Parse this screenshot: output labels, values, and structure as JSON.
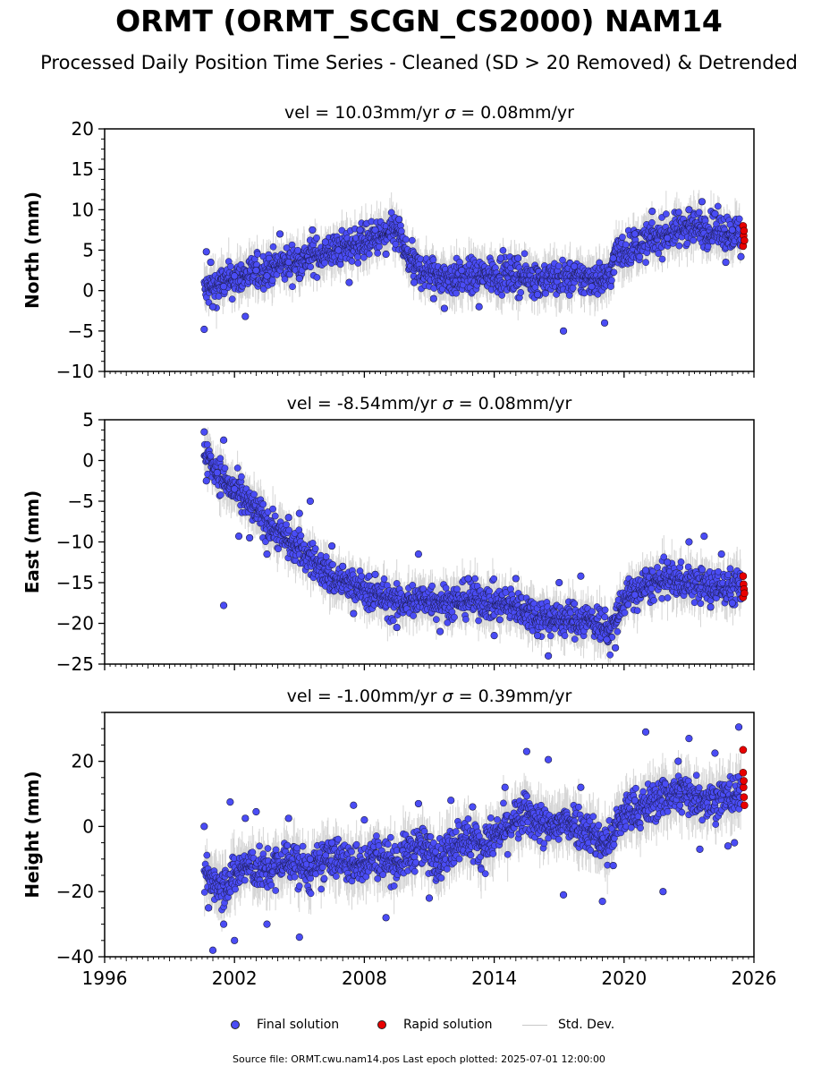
{
  "title": "ORMT (ORMT_SCGN_CS2000) NAM14",
  "subtitle": "Processed Daily Position Time Series - Cleaned (SD > 20 Removed) & Detrended",
  "legend": {
    "final": "Final solution",
    "rapid": "Rapid solution",
    "std": "Std. Dev."
  },
  "colors": {
    "final": "#4a4cf5",
    "rapid": "#e80000",
    "std": "#b4b4b4"
  },
  "footer": "Source file: ORMT.cwu.nam14.pos  Last epoch plotted: 2025-07-01 12:00:00",
  "chart_data": [
    {
      "type": "scatter",
      "panel": "north",
      "title_prefix": "vel = 10.03mm/yr",
      "title_sigma": "= 0.08mm/yr",
      "ylabel": "North (mm)",
      "xlim": [
        1996,
        2026
      ],
      "ylim": [
        -10,
        20
      ],
      "yticks": [
        -10,
        -5,
        0,
        5,
        10,
        15,
        20
      ],
      "xticks": [
        1996,
        2002,
        2008,
        2014,
        2020,
        2026
      ],
      "std_dev_mm": 1.5,
      "trend": [
        [
          2000.6,
          0.0
        ],
        [
          2002,
          1.5
        ],
        [
          2004,
          3.0
        ],
        [
          2006,
          4.5
        ],
        [
          2008,
          6.0
        ],
        [
          2009.5,
          7.3
        ],
        [
          2010,
          4.0
        ],
        [
          2010.5,
          2.5
        ],
        [
          2012,
          1.5
        ],
        [
          2014,
          2.0
        ],
        [
          2016,
          1.5
        ],
        [
          2018,
          1.5
        ],
        [
          2019.3,
          1.5
        ],
        [
          2019.6,
          4.5
        ],
        [
          2020.5,
          5.5
        ],
        [
          2021,
          6.0
        ],
        [
          2022,
          7.0
        ],
        [
          2023,
          8.0
        ],
        [
          2024,
          7.5
        ],
        [
          2025.4,
          7.0
        ]
      ],
      "final_points": [
        [
          2000.6,
          -4.8
        ],
        [
          2000.7,
          4.8
        ],
        [
          2000.9,
          3.5
        ],
        [
          2001.0,
          -2.0
        ],
        [
          2001.5,
          0.5
        ],
        [
          2002.0,
          1.8
        ],
        [
          2002.5,
          -3.2
        ],
        [
          2003.0,
          2.5
        ],
        [
          2003.5,
          1.8
        ],
        [
          2004.1,
          7.0
        ],
        [
          2004.5,
          3.5
        ],
        [
          2005.0,
          1.5
        ],
        [
          2005.6,
          7.5
        ],
        [
          2006.2,
          6.0
        ],
        [
          2006.8,
          5.0
        ],
        [
          2007.3,
          1.0
        ],
        [
          2007.8,
          7.5
        ],
        [
          2008.5,
          7.5
        ],
        [
          2009.0,
          4.5
        ],
        [
          2009.6,
          8.8
        ],
        [
          2010.3,
          1.0
        ],
        [
          2011.2,
          -1.0
        ],
        [
          2011.7,
          -2.2
        ],
        [
          2012.5,
          2.5
        ],
        [
          2013.3,
          -2.0
        ],
        [
          2014.3,
          4.0
        ],
        [
          2015.1,
          4.0
        ],
        [
          2016.0,
          -0.5
        ],
        [
          2017.2,
          -5.0
        ],
        [
          2017.7,
          3.0
        ],
        [
          2018.5,
          0.5
        ],
        [
          2019.1,
          -4.0
        ],
        [
          2019.5,
          4.0
        ],
        [
          2020.5,
          7.0
        ],
        [
          2021.3,
          9.8
        ],
        [
          2022.0,
          6.5
        ],
        [
          2023.0,
          10.0
        ],
        [
          2023.6,
          11.0
        ],
        [
          2024.2,
          9.5
        ],
        [
          2024.7,
          3.5
        ],
        [
          2025.0,
          7.5
        ],
        [
          2025.4,
          4.2
        ]
      ],
      "rapid_points": [
        [
          2025.5,
          5.5
        ],
        [
          2025.5,
          8.0
        ],
        [
          2025.52,
          6.8
        ],
        [
          2025.54,
          7.4
        ],
        [
          2025.56,
          6.2
        ]
      ]
    },
    {
      "type": "scatter",
      "panel": "east",
      "title_prefix": "vel = -8.54mm/yr",
      "title_sigma": "= 0.08mm/yr",
      "ylabel": "East (mm)",
      "xlim": [
        1996,
        2026
      ],
      "ylim": [
        -25,
        5
      ],
      "yticks": [
        -25,
        -20,
        -15,
        -10,
        -5,
        0,
        5
      ],
      "xticks": [
        1996,
        2002,
        2008,
        2014,
        2020,
        2026
      ],
      "std_dev_mm": 1.5,
      "trend": [
        [
          2000.6,
          1.0
        ],
        [
          2001.5,
          -2.5
        ],
        [
          2002.5,
          -5.0
        ],
        [
          2003.5,
          -7.5
        ],
        [
          2004.5,
          -10.0
        ],
        [
          2005.5,
          -12.0
        ],
        [
          2006.5,
          -14.5
        ],
        [
          2007.5,
          -15.5
        ],
        [
          2008.5,
          -16.5
        ],
        [
          2009.5,
          -17.5
        ],
        [
          2011,
          -17.0
        ],
        [
          2012,
          -17.5
        ],
        [
          2013,
          -17.0
        ],
        [
          2014,
          -17.5
        ],
        [
          2015,
          -18.0
        ],
        [
          2016,
          -19.0
        ],
        [
          2017,
          -19.5
        ],
        [
          2018,
          -19.5
        ],
        [
          2019,
          -20.0
        ],
        [
          2019.3,
          -21.5
        ],
        [
          2020,
          -17.0
        ],
        [
          2021,
          -15.5
        ],
        [
          2022,
          -14.5
        ],
        [
          2023,
          -15.0
        ],
        [
          2024,
          -15.5
        ],
        [
          2025.4,
          -15.5
        ]
      ],
      "final_points": [
        [
          2000.6,
          3.5
        ],
        [
          2000.7,
          -2.5
        ],
        [
          2001.2,
          -1.5
        ],
        [
          2001.5,
          2.5
        ],
        [
          2002.0,
          -3.5
        ],
        [
          2002.2,
          -9.3
        ],
        [
          2002.7,
          -9.5
        ],
        [
          2001.5,
          -17.8
        ],
        [
          2003.5,
          -11.5
        ],
        [
          2004.5,
          -7.0
        ],
        [
          2005.0,
          -6.5
        ],
        [
          2005.5,
          -5.0
        ],
        [
          2006.5,
          -10.5
        ],
        [
          2007.0,
          -13.0
        ],
        [
          2007.5,
          -18.8
        ],
        [
          2008.5,
          -14.0
        ],
        [
          2009.5,
          -20.5
        ],
        [
          2010.5,
          -11.5
        ],
        [
          2011.5,
          -21.0
        ],
        [
          2012.8,
          -14.5
        ],
        [
          2014.0,
          -21.5
        ],
        [
          2015.0,
          -14.5
        ],
        [
          2016.0,
          -21.5
        ],
        [
          2016.5,
          -24.0
        ],
        [
          2017.0,
          -15.0
        ],
        [
          2018.0,
          -14.2
        ],
        [
          2019.2,
          -22.0
        ],
        [
          2019.6,
          -23.0
        ],
        [
          2020.5,
          -16.5
        ],
        [
          2021.0,
          -13.5
        ],
        [
          2022.0,
          -12.5
        ],
        [
          2023.0,
          -10.0
        ],
        [
          2023.7,
          -9.3
        ],
        [
          2024.0,
          -18.0
        ],
        [
          2024.5,
          -11.5
        ],
        [
          2025.0,
          -17.5
        ],
        [
          2025.4,
          -17.0
        ]
      ],
      "rapid_points": [
        [
          2025.5,
          -14.2
        ],
        [
          2025.5,
          -16.8
        ],
        [
          2025.52,
          -15.2
        ],
        [
          2025.54,
          -15.8
        ],
        [
          2025.56,
          -16.3
        ]
      ]
    },
    {
      "type": "scatter",
      "panel": "height",
      "title_prefix": "vel = -1.00mm/yr",
      "title_sigma": "= 0.39mm/yr",
      "ylabel": "Height (mm)",
      "xlim": [
        1996,
        2026
      ],
      "ylim": [
        -40,
        35
      ],
      "yticks": [
        -40,
        -20,
        0,
        20
      ],
      "xticks": [
        1996,
        2002,
        2008,
        2014,
        2020,
        2026
      ],
      "xtick_labels": [
        "1996",
        "2002",
        "2008",
        "2014",
        "2020",
        "2026"
      ],
      "std_dev_mm": 4.5,
      "trend": [
        [
          2000.6,
          -15.0
        ],
        [
          2001.5,
          -18.0
        ],
        [
          2002.5,
          -12.0
        ],
        [
          2003.5,
          -14.0
        ],
        [
          2004.5,
          -10.0
        ],
        [
          2005.5,
          -14.0
        ],
        [
          2006.5,
          -9.0
        ],
        [
          2007.5,
          -12.0
        ],
        [
          2008.5,
          -9.0
        ],
        [
          2009.5,
          -11.0
        ],
        [
          2010.5,
          -6.0
        ],
        [
          2011.5,
          -10.0
        ],
        [
          2012.5,
          -3.0
        ],
        [
          2013.5,
          -6.0
        ],
        [
          2014.5,
          -1.0
        ],
        [
          2015.5,
          4.0
        ],
        [
          2016.5,
          -1.0
        ],
        [
          2017.5,
          2.0
        ],
        [
          2018.5,
          -2.0
        ],
        [
          2019.2,
          -6.0
        ],
        [
          2020.0,
          4.0
        ],
        [
          2021.0,
          6.0
        ],
        [
          2022.0,
          10.0
        ],
        [
          2023.0,
          10.0
        ],
        [
          2024.0,
          8.0
        ],
        [
          2025.4,
          10.0
        ]
      ],
      "final_points": [
        [
          2000.6,
          0.0
        ],
        [
          2000.8,
          -25.0
        ],
        [
          2001.0,
          -38.0
        ],
        [
          2001.5,
          -30.0
        ],
        [
          2001.8,
          7.5
        ],
        [
          2002.0,
          -35.0
        ],
        [
          2002.5,
          2.5
        ],
        [
          2003.0,
          4.5
        ],
        [
          2003.5,
          -30.0
        ],
        [
          2004.5,
          2.5
        ],
        [
          2005.0,
          -34.0
        ],
        [
          2005.5,
          -10.0
        ],
        [
          2006.5,
          -5.0
        ],
        [
          2007.5,
          6.5
        ],
        [
          2008.0,
          2.0
        ],
        [
          2009.0,
          -28.0
        ],
        [
          2010.5,
          7.0
        ],
        [
          2011.0,
          -22.0
        ],
        [
          2012.0,
          8.0
        ],
        [
          2013.0,
          6.0
        ],
        [
          2014.5,
          12.0
        ],
        [
          2015.5,
          23.0
        ],
        [
          2016.5,
          20.5
        ],
        [
          2017.2,
          -21.0
        ],
        [
          2018.0,
          12.0
        ],
        [
          2019.0,
          -23.0
        ],
        [
          2019.5,
          -12.0
        ],
        [
          2020.5,
          8.0
        ],
        [
          2021.0,
          29.0
        ],
        [
          2021.8,
          -20.0
        ],
        [
          2022.5,
          20.0
        ],
        [
          2023.0,
          27.0
        ],
        [
          2023.5,
          -7.0
        ],
        [
          2024.2,
          22.5
        ],
        [
          2024.8,
          -6.0
        ],
        [
          2025.1,
          -5.0
        ],
        [
          2025.3,
          30.5
        ]
      ],
      "rapid_points": [
        [
          2025.5,
          23.5
        ],
        [
          2025.5,
          16.5
        ],
        [
          2025.52,
          12.0
        ],
        [
          2025.54,
          9.0
        ],
        [
          2025.56,
          6.5
        ],
        [
          2025.53,
          14.0
        ]
      ]
    }
  ]
}
